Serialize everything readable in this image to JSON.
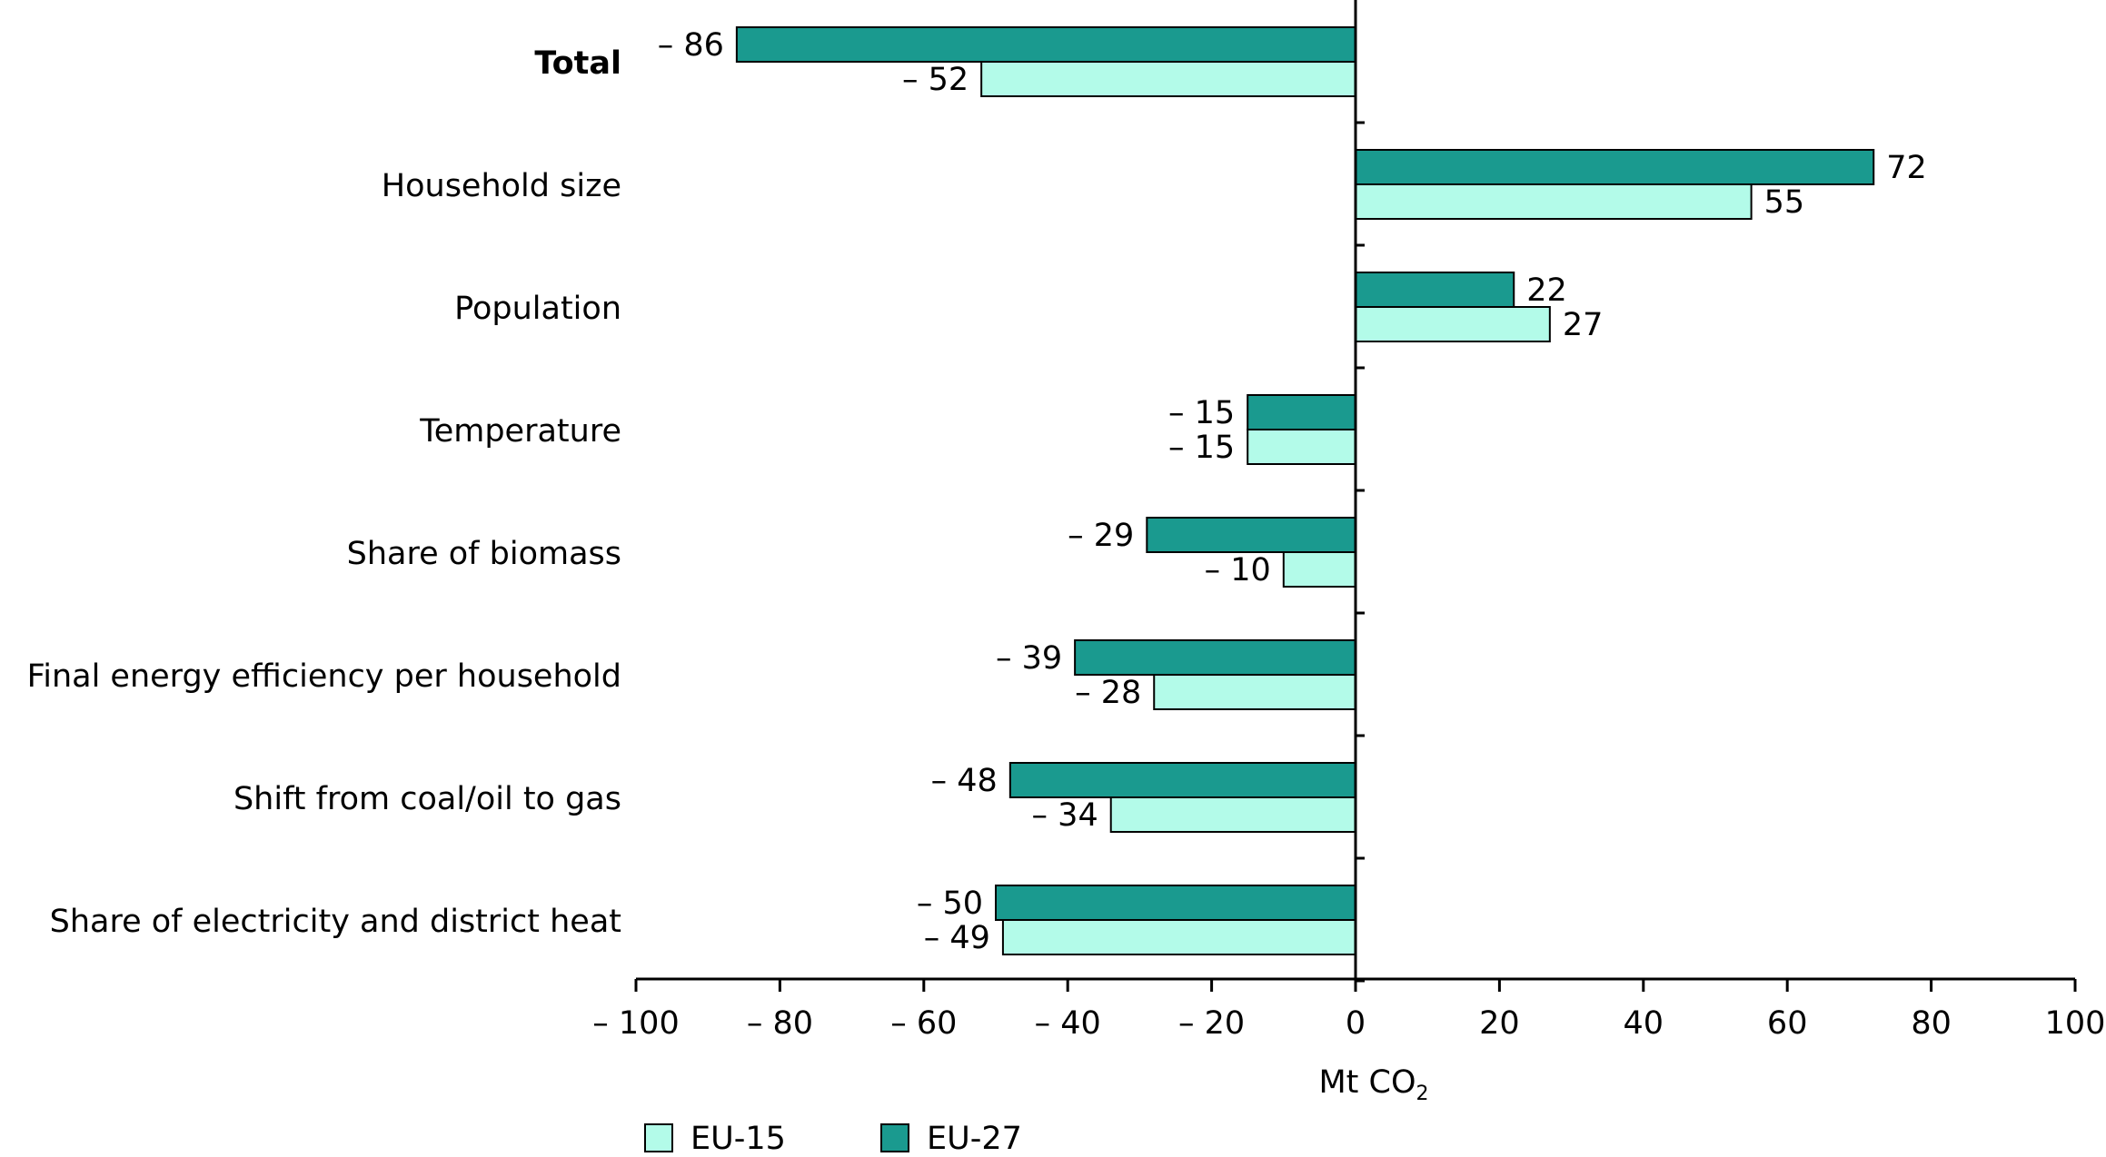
{
  "chart_data": {
    "type": "bar",
    "orientation": "horizontal",
    "categories": [
      "Total",
      "Household size",
      "Population",
      "Temperature",
      "Share of biomass",
      "Final energy efficiency per household",
      "Shift from coal/oil to gas",
      "Share of electricity and district heat"
    ],
    "bold_categories": [
      "Total"
    ],
    "series": [
      {
        "name": "EU-27",
        "color": "#1a9a8f",
        "values": [
          -86,
          72,
          22,
          -15,
          -29,
          -39,
          -48,
          -50
        ],
        "labels": [
          "– 86",
          "72",
          "22",
          "– 15",
          "– 29",
          "– 39",
          "– 48",
          "– 50"
        ]
      },
      {
        "name": "EU-15",
        "color": "#b3fbe9",
        "values": [
          -52,
          55,
          27,
          -15,
          -10,
          -28,
          -34,
          -49
        ],
        "labels": [
          "– 52",
          "55",
          "27",
          "– 15",
          "– 10",
          "– 28",
          "– 34",
          "– 49"
        ]
      }
    ],
    "xlim": [
      -100,
      100
    ],
    "xticks": [
      -100,
      -80,
      -60,
      -40,
      -20,
      0,
      20,
      40,
      60,
      80,
      100
    ],
    "xtick_labels": [
      "– 100",
      "– 80",
      "– 60",
      "– 40",
      "– 20",
      "0",
      "20",
      "40",
      "60",
      "80",
      "100"
    ],
    "xlabel": "Mt CO",
    "xlabel_subscript": "2",
    "legend": [
      {
        "name": "EU-15",
        "color": "#b3fbe9"
      },
      {
        "name": "EU-27",
        "color": "#1a9a8f"
      }
    ],
    "legend_position": "bottom-left",
    "grid": false
  }
}
